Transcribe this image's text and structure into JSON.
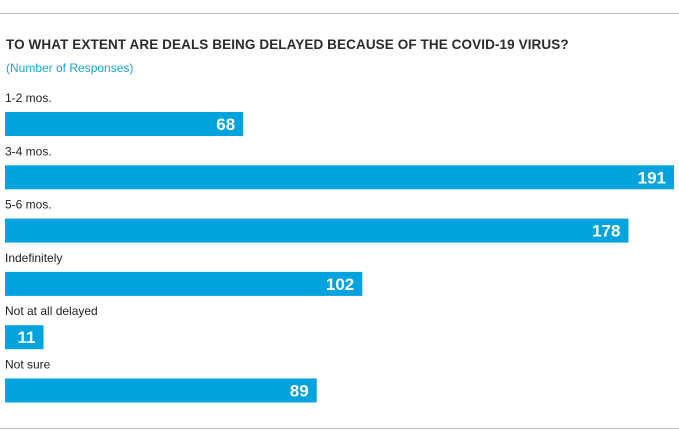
{
  "title": "TO WHAT EXTENT ARE DEALS BEING DELAYED BECAUSE OF THE COVID-19 VIRUS?",
  "subtitle": "(Number of Responses)",
  "colors": {
    "bar": "#00a3dd",
    "value_label": "#ffffff",
    "category_label": "#222222"
  },
  "chart_data": {
    "type": "bar",
    "orientation": "horizontal",
    "title": "TO WHAT EXTENT ARE DEALS BEING DELAYED BECAUSE OF THE COVID-19 VIRUS?",
    "subtitle": "(Number of Responses)",
    "categories": [
      "1-2 mos.",
      "3-4 mos.",
      "5-6 mos.",
      "Indefinitely",
      "Not at all delayed",
      "Not sure"
    ],
    "values": [
      68,
      191,
      178,
      102,
      11,
      89
    ],
    "xlim": [
      0,
      191
    ],
    "grid": false,
    "legend": "none"
  }
}
